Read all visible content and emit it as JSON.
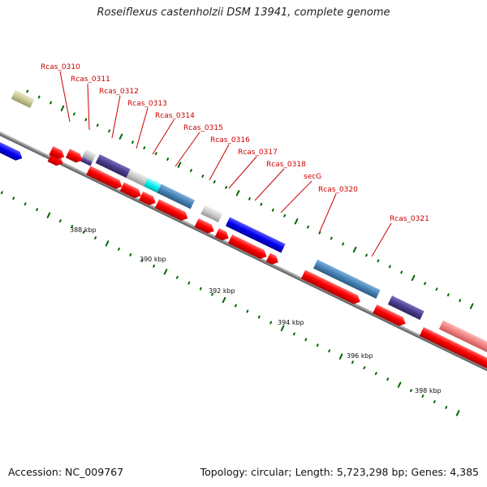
{
  "title": "Roseiflexus castenholzii DSM 13941, complete genome",
  "footer": {
    "accession": "Accession: NC_009767",
    "summary": "Topology: circular; Length: 5,723,298 bp; Genes: 4,385"
  },
  "colors": {
    "backbone": "#888888",
    "forward_strand": "#ff0000",
    "tick": "#006600",
    "label_line": "#cc0000",
    "gene_blue": "#1010ee",
    "gene_steelblue": "#4682b4",
    "gene_darkslate": "#483d8b",
    "gene_grey": "#c8c8c8",
    "gene_cyan": "#00ffff",
    "gene_pink": "#f08080",
    "gene_olive": "#c8c896"
  },
  "gene_labels": [
    "Rcas_0310",
    "Rcas_0311",
    "Rcas_0312",
    "Rcas_0313",
    "Rcas_0314",
    "Rcas_0315",
    "Rcas_0316",
    "Rcas_0317",
    "Rcas_0318",
    "secG",
    "Rcas_0320",
    "Rcas_0321"
  ],
  "scale_labels": [
    "388 kbp",
    "390 kbp",
    "392 kbp",
    "394 kbp",
    "396 kbp",
    "398 kbp"
  ]
}
